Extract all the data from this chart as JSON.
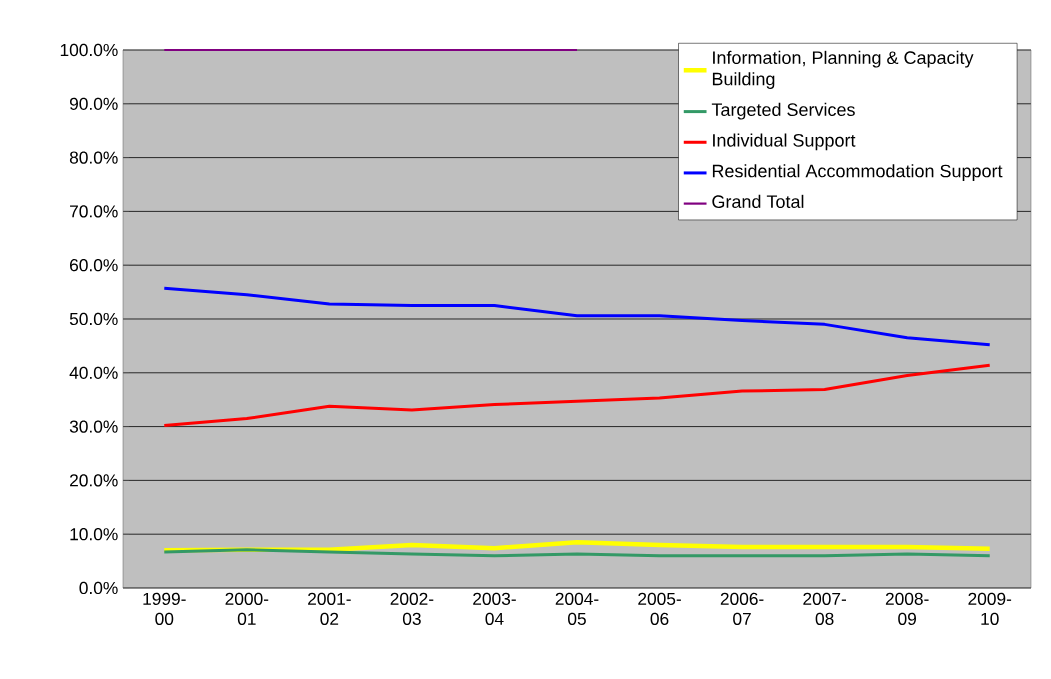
{
  "chart_data": {
    "type": "line",
    "categories": [
      "1999-00",
      "2000-01",
      "2001-02",
      "2002-03",
      "2003-04",
      "2004-05",
      "2005-06",
      "2006-07",
      "2007-08",
      "2008-09",
      "2009-10"
    ],
    "series": [
      {
        "name": "Information, Planning & Capacity Building",
        "color": "#ffff00",
        "values": [
          7.0,
          7.1,
          7.1,
          8.0,
          7.4,
          8.5,
          8.0,
          7.6,
          7.6,
          7.6,
          7.3
        ]
      },
      {
        "name": "Targeted Services",
        "color": "#339966",
        "values": [
          6.7,
          7.1,
          6.7,
          6.3,
          6.0,
          6.3,
          6.0,
          6.0,
          6.0,
          6.3,
          6.0
        ]
      },
      {
        "name": "Individual Support",
        "color": "#ff0000",
        "values": [
          30.2,
          31.5,
          33.8,
          33.1,
          34.1,
          34.7,
          35.3,
          36.6,
          36.9,
          39.5,
          41.4
        ]
      },
      {
        "name": "Residential Accommodation Support",
        "color": "#0000ff",
        "values": [
          55.7,
          54.5,
          52.8,
          52.5,
          52.5,
          50.6,
          50.6,
          49.7,
          49.0,
          46.5,
          45.2
        ]
      },
      {
        "name": "Grand Total",
        "color": "#800080",
        "values": [
          100,
          100,
          100,
          100,
          100,
          100,
          null,
          null,
          null,
          null,
          null
        ]
      }
    ],
    "ylim": [
      0,
      100
    ],
    "yticks": [
      {
        "value": 0,
        "label": "0.0%"
      },
      {
        "value": 10,
        "label": "10.0%"
      },
      {
        "value": 20,
        "label": "20.0%"
      },
      {
        "value": 30,
        "label": "30.0%"
      },
      {
        "value": 40,
        "label": "40.0%"
      },
      {
        "value": 50,
        "label": "50.0%"
      },
      {
        "value": 60,
        "label": "60.0%"
      },
      {
        "value": 70,
        "label": "70.0%"
      },
      {
        "value": 80,
        "label": "80.0%"
      },
      {
        "value": 90,
        "label": "90.0%"
      },
      {
        "value": 100,
        "label": "100.0%"
      }
    ],
    "grid": "y",
    "legend": "top right",
    "marker": "none",
    "line_style": "solid"
  }
}
